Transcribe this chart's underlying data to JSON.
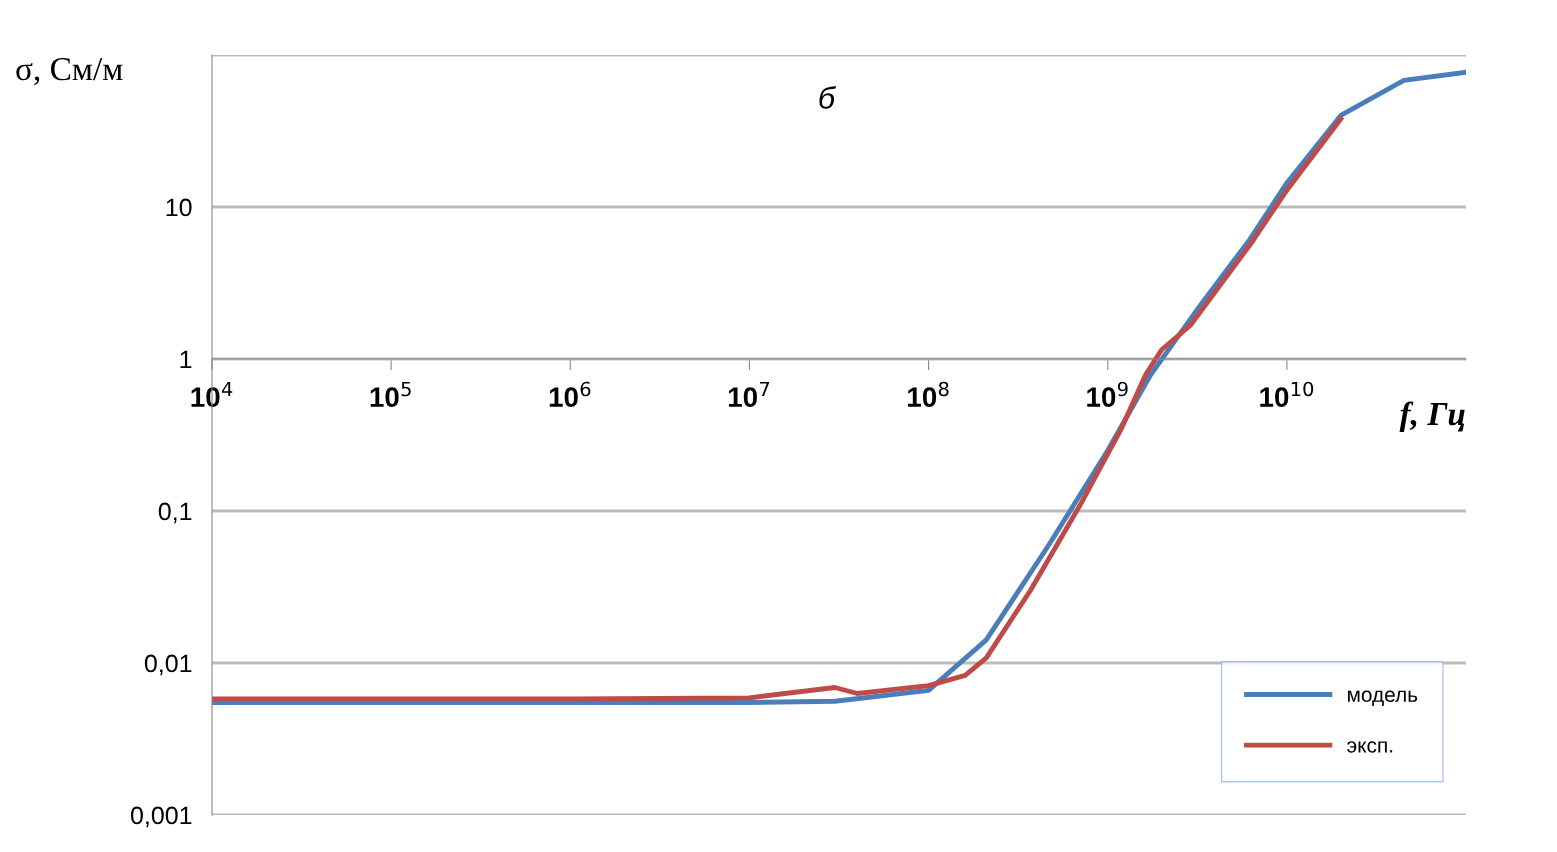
{
  "chart_data": {
    "type": "line",
    "xlabel": "f, Гц",
    "ylabel": "σ, См/м",
    "annotations": [
      "б"
    ],
    "log": "xy",
    "xlim": [
      10000,
      100000000000
    ],
    "ylim": [
      0.001,
      100
    ],
    "xticks": [
      {
        "value": 10000,
        "label": "10$^{4}$"
      },
      {
        "value": 100000,
        "label": "10$^{5}$"
      },
      {
        "value": 1000000,
        "label": "10$^{6}$"
      },
      {
        "value": 10000000,
        "label": "10$^{7}$"
      },
      {
        "value": 100000000,
        "label": "10$^{8}$"
      },
      {
        "value": 1000000000,
        "label": "10$^{9}$"
      },
      {
        "value": 10000000000,
        "label": "10$^{10}$"
      }
    ],
    "yticks": [
      {
        "value": 0.001,
        "label": "0,001"
      },
      {
        "value": 0.01,
        "label": "0,01"
      },
      {
        "value": 0.1,
        "label": "0,1"
      },
      1,
      10,
      {
        "value": 100,
        "label": null
      }
    ],
    "grid": "y",
    "legend": "bottom right",
    "series": [
      {
        "name": "модель",
        "color": "#4a7ebb",
        "x": [
          10000,
          1000000,
          10000000,
          30000000,
          100000000,
          210000000,
          470000000,
          1000000000,
          1740000000,
          3300000000,
          6200000000,
          10000000000,
          20000000000,
          45000000000,
          100000000000
        ],
        "values": [
          0.0055,
          0.0055,
          0.0055,
          0.0056,
          0.0066,
          0.0142,
          0.06,
          0.25,
          0.79,
          2.27,
          6.1,
          14.4,
          40,
          68,
          77
        ]
      },
      {
        "name": "эксп.",
        "color": "#be4b48",
        "x": [
          10000,
          1000000,
          10000000,
          30000000,
          40000000,
          100000000,
          160000000,
          210000000,
          370000000,
          700000000,
          1180000000,
          1630000000,
          2000000000,
          2900000000,
          6200000000,
          10000000000,
          20000000000
        ],
        "values": [
          0.0058,
          0.0058,
          0.0059,
          0.0069,
          0.0063,
          0.0071,
          0.0083,
          0.0108,
          0.03,
          0.109,
          0.34,
          0.79,
          1.15,
          1.67,
          5.6,
          12.9,
          38
        ]
      }
    ]
  }
}
